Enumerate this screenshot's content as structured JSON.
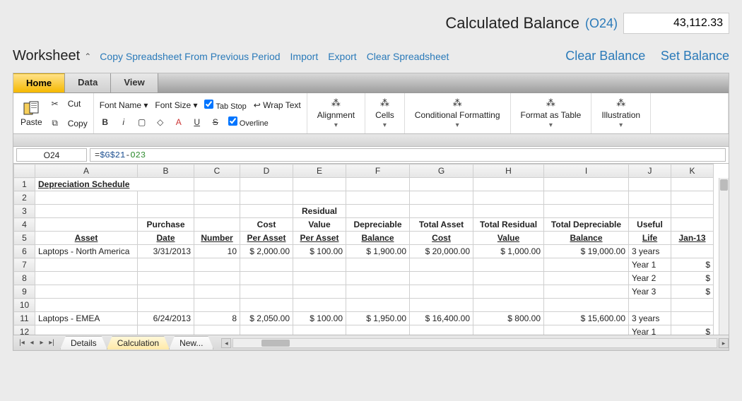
{
  "header": {
    "calc_label": "Calculated Balance",
    "calc_cell": "(O24)",
    "calc_value": "43,112.33"
  },
  "worksheet": {
    "title": "Worksheet",
    "links": {
      "copy_prev": "Copy Spreadsheet From Previous Period",
      "import": "Import",
      "export": "Export",
      "clear_sheet": "Clear Spreadsheet"
    },
    "actions": {
      "clear_balance": "Clear Balance",
      "set_balance": "Set Balance"
    }
  },
  "ribbon": {
    "tabs": {
      "home": "Home",
      "data": "Data",
      "view": "View"
    },
    "paste": "Paste",
    "cut": "Cut",
    "copy": "Copy",
    "font_name": "Font Name",
    "font_size": "Font Size",
    "tab_stop": "Tab Stop",
    "wrap_text": "Wrap Text",
    "overline": "Overline",
    "alignment": "Alignment",
    "cells": "Cells",
    "cond_fmt": "Conditional Formatting",
    "fmt_table": "Format as Table",
    "illustration": "Illustration"
  },
  "formula": {
    "namebox": "O24",
    "eq": "=",
    "abs": "$G$21",
    "op": "-",
    "rel": "O23"
  },
  "grid": {
    "cols": [
      "A",
      "B",
      "C",
      "D",
      "E",
      "F",
      "G",
      "H",
      "I",
      "J",
      "K"
    ],
    "widths": [
      145,
      80,
      65,
      75,
      75,
      90,
      90,
      100,
      120,
      60,
      60
    ],
    "rows": [
      {
        "n": "1",
        "cells": [
          {
            "v": "Depreciation Schedule",
            "cls": "b u",
            "span": 2
          },
          null,
          {
            "v": ""
          },
          {
            "v": ""
          },
          {
            "v": ""
          },
          {
            "v": ""
          },
          {
            "v": ""
          },
          {
            "v": ""
          },
          {
            "v": ""
          },
          {
            "v": ""
          },
          {
            "v": ""
          }
        ]
      },
      {
        "n": "2",
        "cells": [
          {
            "v": ""
          },
          {
            "v": ""
          },
          {
            "v": ""
          },
          {
            "v": ""
          },
          {
            "v": ""
          },
          {
            "v": ""
          },
          {
            "v": ""
          },
          {
            "v": ""
          },
          {
            "v": ""
          },
          {
            "v": ""
          },
          {
            "v": ""
          }
        ]
      },
      {
        "n": "3",
        "cells": [
          {
            "v": ""
          },
          {
            "v": ""
          },
          {
            "v": ""
          },
          {
            "v": ""
          },
          {
            "v": "Residual",
            "cls": "b c"
          },
          {
            "v": ""
          },
          {
            "v": ""
          },
          {
            "v": ""
          },
          {
            "v": ""
          },
          {
            "v": ""
          },
          {
            "v": ""
          }
        ]
      },
      {
        "n": "4",
        "cells": [
          {
            "v": ""
          },
          {
            "v": "Purchase",
            "cls": "b c"
          },
          {
            "v": ""
          },
          {
            "v": "Cost",
            "cls": "b c"
          },
          {
            "v": "Value",
            "cls": "b c"
          },
          {
            "v": "Depreciable",
            "cls": "b c"
          },
          {
            "v": "Total Asset",
            "cls": "b c"
          },
          {
            "v": "Total Residual",
            "cls": "b c"
          },
          {
            "v": "Total Depreciable",
            "cls": "b c"
          },
          {
            "v": "Useful",
            "cls": "b c"
          },
          {
            "v": ""
          }
        ]
      },
      {
        "n": "5",
        "cells": [
          {
            "v": "Asset",
            "cls": "b u c"
          },
          {
            "v": "Date",
            "cls": "b u c"
          },
          {
            "v": "Number",
            "cls": "b u c"
          },
          {
            "v": "Per Asset",
            "cls": "b u c"
          },
          {
            "v": "Per Asset",
            "cls": "b u c"
          },
          {
            "v": "Balance",
            "cls": "b u c"
          },
          {
            "v": "Cost",
            "cls": "b u c"
          },
          {
            "v": "Value",
            "cls": "b u c"
          },
          {
            "v": "Balance",
            "cls": "b u c"
          },
          {
            "v": "Life",
            "cls": "b u c"
          },
          {
            "v": "Jan-13",
            "cls": "b u c"
          }
        ]
      },
      {
        "n": "6",
        "cells": [
          {
            "v": "Laptops - North America"
          },
          {
            "v": "3/31/2013",
            "cls": "r"
          },
          {
            "v": "10",
            "cls": "r"
          },
          {
            "v": "$ 2,000.00",
            "cls": "r"
          },
          {
            "v": "$ 100.00",
            "cls": "r"
          },
          {
            "v": "$ 1,900.00",
            "cls": "r"
          },
          {
            "v": "$ 20,000.00",
            "cls": "r"
          },
          {
            "v": "$ 1,000.00",
            "cls": "r"
          },
          {
            "v": "$ 19,000.00",
            "cls": "r"
          },
          {
            "v": "3 years"
          },
          {
            "v": ""
          }
        ]
      },
      {
        "n": "7",
        "cells": [
          {
            "v": ""
          },
          {
            "v": ""
          },
          {
            "v": ""
          },
          {
            "v": ""
          },
          {
            "v": ""
          },
          {
            "v": ""
          },
          {
            "v": ""
          },
          {
            "v": ""
          },
          {
            "v": ""
          },
          {
            "v": "Year 1"
          },
          {
            "v": "$",
            "cls": "r"
          }
        ]
      },
      {
        "n": "8",
        "cells": [
          {
            "v": ""
          },
          {
            "v": ""
          },
          {
            "v": ""
          },
          {
            "v": ""
          },
          {
            "v": ""
          },
          {
            "v": ""
          },
          {
            "v": ""
          },
          {
            "v": ""
          },
          {
            "v": ""
          },
          {
            "v": "Year 2"
          },
          {
            "v": "$",
            "cls": "r"
          }
        ]
      },
      {
        "n": "9",
        "cells": [
          {
            "v": ""
          },
          {
            "v": ""
          },
          {
            "v": ""
          },
          {
            "v": ""
          },
          {
            "v": ""
          },
          {
            "v": ""
          },
          {
            "v": ""
          },
          {
            "v": ""
          },
          {
            "v": ""
          },
          {
            "v": "Year 3"
          },
          {
            "v": "$",
            "cls": "r"
          }
        ]
      },
      {
        "n": "10",
        "cells": [
          {
            "v": ""
          },
          {
            "v": ""
          },
          {
            "v": ""
          },
          {
            "v": ""
          },
          {
            "v": ""
          },
          {
            "v": ""
          },
          {
            "v": ""
          },
          {
            "v": ""
          },
          {
            "v": ""
          },
          {
            "v": ""
          },
          {
            "v": ""
          }
        ]
      },
      {
        "n": "11",
        "cells": [
          {
            "v": "Laptops - EMEA"
          },
          {
            "v": "6/24/2013",
            "cls": "r"
          },
          {
            "v": "8",
            "cls": "r"
          },
          {
            "v": "$ 2,050.00",
            "cls": "r"
          },
          {
            "v": "$ 100.00",
            "cls": "r"
          },
          {
            "v": "$ 1,950.00",
            "cls": "r"
          },
          {
            "v": "$ 16,400.00",
            "cls": "r"
          },
          {
            "v": "$ 800.00",
            "cls": "r"
          },
          {
            "v": "$ 15,600.00",
            "cls": "r"
          },
          {
            "v": "3 years"
          },
          {
            "v": ""
          }
        ]
      },
      {
        "n": "12",
        "cells": [
          {
            "v": ""
          },
          {
            "v": ""
          },
          {
            "v": ""
          },
          {
            "v": ""
          },
          {
            "v": ""
          },
          {
            "v": ""
          },
          {
            "v": ""
          },
          {
            "v": ""
          },
          {
            "v": ""
          },
          {
            "v": "Year 1"
          },
          {
            "v": "$",
            "cls": "r"
          }
        ]
      }
    ]
  },
  "sheets": {
    "details": "Details",
    "calculation": "Calculation",
    "new": "New..."
  }
}
